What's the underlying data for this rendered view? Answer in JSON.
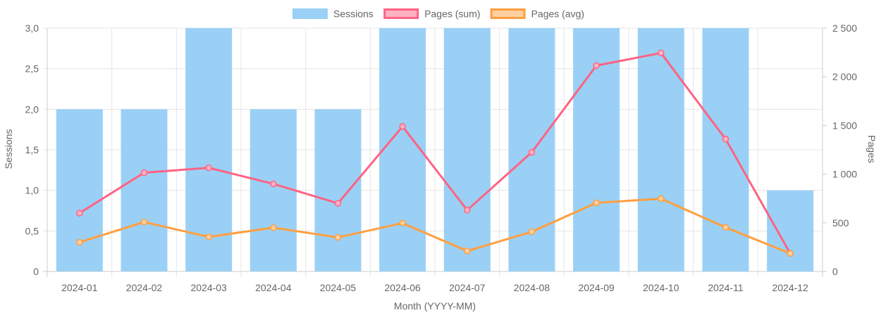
{
  "chart_data": {
    "type": "bar",
    "categories": [
      "2024-01",
      "2024-02",
      "2024-03",
      "2024-04",
      "2024-05",
      "2024-06",
      "2024-07",
      "2024-08",
      "2024-09",
      "2024-10",
      "2024-11",
      "2024-12"
    ],
    "series": [
      {
        "name": "Sessions",
        "type": "bar",
        "axis": "left",
        "color": "#9ad0f5",
        "values": [
          2,
          2,
          3,
          2,
          2,
          3,
          3,
          3,
          3,
          3,
          3,
          1
        ]
      },
      {
        "name": "Pages (sum)",
        "type": "line",
        "axis": "right",
        "color": "#ff6384",
        "fill_color": "#ffb1c1",
        "values": [
          600,
          1015,
          1065,
          900,
          700,
          1490,
          630,
          1225,
          2115,
          2245,
          1360,
          185
        ]
      },
      {
        "name": "Pages (avg)",
        "type": "line",
        "axis": "right",
        "color": "#ff9f40",
        "fill_color": "#ffcf9f",
        "values": [
          300,
          508,
          355,
          450,
          350,
          497,
          210,
          408,
          705,
          748,
          453,
          185
        ]
      }
    ],
    "xlabel": "Month (YYYY-MM)",
    "ylabel": "Sessions",
    "y2label": "Pages",
    "ylim": [
      0,
      3
    ],
    "y2lim": [
      0,
      2500
    ],
    "yticks": [
      "0",
      "0,5",
      "1,0",
      "1,5",
      "2,0",
      "2,5",
      "3,0"
    ],
    "y2ticks": [
      "0",
      "500",
      "1 000",
      "1 500",
      "2 000",
      "2 500"
    ],
    "grid": true,
    "legend_position": "top"
  }
}
